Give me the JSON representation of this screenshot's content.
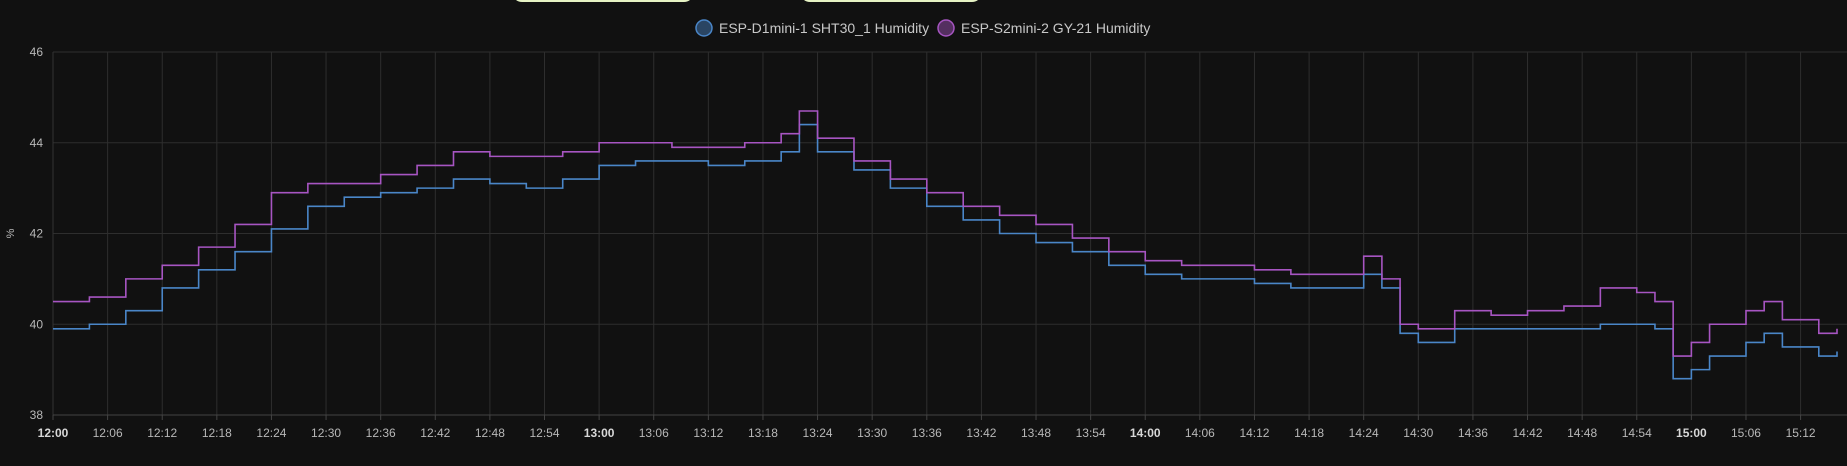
{
  "chart_data": {
    "type": "line",
    "step": true,
    "xlabel": "",
    "ylabel": "%",
    "ylim": [
      38,
      46
    ],
    "yticks": [
      "38",
      "40",
      "42",
      "44",
      "46"
    ],
    "xlim": [
      "12:00",
      "15:16"
    ],
    "xticks": [
      {
        "t": "12:00",
        "bold": true
      },
      {
        "t": "12:06"
      },
      {
        "t": "12:12"
      },
      {
        "t": "12:18"
      },
      {
        "t": "12:24"
      },
      {
        "t": "12:30"
      },
      {
        "t": "12:36"
      },
      {
        "t": "12:42"
      },
      {
        "t": "12:48"
      },
      {
        "t": "12:54"
      },
      {
        "t": "13:00",
        "bold": true
      },
      {
        "t": "13:06"
      },
      {
        "t": "13:12"
      },
      {
        "t": "13:18"
      },
      {
        "t": "13:24"
      },
      {
        "t": "13:30"
      },
      {
        "t": "13:36"
      },
      {
        "t": "13:42"
      },
      {
        "t": "13:48"
      },
      {
        "t": "13:54"
      },
      {
        "t": "14:00",
        "bold": true
      },
      {
        "t": "14:06"
      },
      {
        "t": "14:12"
      },
      {
        "t": "14:18"
      },
      {
        "t": "14:24"
      },
      {
        "t": "14:30"
      },
      {
        "t": "14:36"
      },
      {
        "t": "14:42"
      },
      {
        "t": "14:48"
      },
      {
        "t": "14:54"
      },
      {
        "t": "15:00",
        "bold": true
      },
      {
        "t": "15:06"
      },
      {
        "t": "15:12"
      }
    ],
    "grid": true,
    "legend_position": "top-center",
    "series": [
      {
        "name": "ESP-D1mini-1 SHT30_1 Humidity",
        "color": "#4a86c8",
        "points": [
          [
            "12:00",
            39.9
          ],
          [
            "12:04",
            40.0
          ],
          [
            "12:08",
            40.3
          ],
          [
            "12:12",
            40.8
          ],
          [
            "12:16",
            41.2
          ],
          [
            "12:20",
            41.6
          ],
          [
            "12:24",
            42.1
          ],
          [
            "12:28",
            42.6
          ],
          [
            "12:32",
            42.8
          ],
          [
            "12:36",
            42.9
          ],
          [
            "12:40",
            43.0
          ],
          [
            "12:44",
            43.2
          ],
          [
            "12:48",
            43.1
          ],
          [
            "12:52",
            43.0
          ],
          [
            "12:56",
            43.2
          ],
          [
            "13:00",
            43.5
          ],
          [
            "13:04",
            43.6
          ],
          [
            "13:08",
            43.6
          ],
          [
            "13:12",
            43.5
          ],
          [
            "13:16",
            43.6
          ],
          [
            "13:20",
            43.8
          ],
          [
            "13:22",
            44.4
          ],
          [
            "13:24",
            43.8
          ],
          [
            "13:28",
            43.4
          ],
          [
            "13:32",
            43.0
          ],
          [
            "13:36",
            42.6
          ],
          [
            "13:40",
            42.3
          ],
          [
            "13:44",
            42.0
          ],
          [
            "13:48",
            41.8
          ],
          [
            "13:52",
            41.6
          ],
          [
            "13:56",
            41.3
          ],
          [
            "14:00",
            41.1
          ],
          [
            "14:04",
            41.0
          ],
          [
            "14:08",
            41.0
          ],
          [
            "14:12",
            40.9
          ],
          [
            "14:16",
            40.8
          ],
          [
            "14:20",
            40.8
          ],
          [
            "14:24",
            41.1
          ],
          [
            "14:26",
            40.8
          ],
          [
            "14:28",
            39.8
          ],
          [
            "14:30",
            39.6
          ],
          [
            "14:34",
            39.9
          ],
          [
            "14:38",
            39.9
          ],
          [
            "14:42",
            39.9
          ],
          [
            "14:46",
            39.9
          ],
          [
            "14:50",
            40.0
          ],
          [
            "14:54",
            40.0
          ],
          [
            "14:56",
            39.9
          ],
          [
            "14:58",
            38.8
          ],
          [
            "15:00",
            39.0
          ],
          [
            "15:02",
            39.3
          ],
          [
            "15:06",
            39.6
          ],
          [
            "15:08",
            39.8
          ],
          [
            "15:10",
            39.5
          ],
          [
            "15:14",
            39.3
          ],
          [
            "15:16",
            39.4
          ]
        ]
      },
      {
        "name": "ESP-S2mini-2 GY-21 Humidity",
        "color": "#a755c2",
        "points": [
          [
            "12:00",
            40.5
          ],
          [
            "12:04",
            40.6
          ],
          [
            "12:08",
            41.0
          ],
          [
            "12:12",
            41.3
          ],
          [
            "12:16",
            41.7
          ],
          [
            "12:20",
            42.2
          ],
          [
            "12:24",
            42.9
          ],
          [
            "12:28",
            43.1
          ],
          [
            "12:32",
            43.1
          ],
          [
            "12:36",
            43.3
          ],
          [
            "12:40",
            43.5
          ],
          [
            "12:44",
            43.8
          ],
          [
            "12:48",
            43.7
          ],
          [
            "12:52",
            43.7
          ],
          [
            "12:56",
            43.8
          ],
          [
            "13:00",
            44.0
          ],
          [
            "13:04",
            44.0
          ],
          [
            "13:08",
            43.9
          ],
          [
            "13:12",
            43.9
          ],
          [
            "13:16",
            44.0
          ],
          [
            "13:20",
            44.2
          ],
          [
            "13:22",
            44.7
          ],
          [
            "13:24",
            44.1
          ],
          [
            "13:28",
            43.6
          ],
          [
            "13:32",
            43.2
          ],
          [
            "13:36",
            42.9
          ],
          [
            "13:40",
            42.6
          ],
          [
            "13:44",
            42.4
          ],
          [
            "13:48",
            42.2
          ],
          [
            "13:52",
            41.9
          ],
          [
            "13:56",
            41.6
          ],
          [
            "14:00",
            41.4
          ],
          [
            "14:04",
            41.3
          ],
          [
            "14:08",
            41.3
          ],
          [
            "14:12",
            41.2
          ],
          [
            "14:16",
            41.1
          ],
          [
            "14:20",
            41.1
          ],
          [
            "14:24",
            41.5
          ],
          [
            "14:26",
            41.0
          ],
          [
            "14:28",
            40.0
          ],
          [
            "14:30",
            39.9
          ],
          [
            "14:34",
            40.3
          ],
          [
            "14:38",
            40.2
          ],
          [
            "14:42",
            40.3
          ],
          [
            "14:46",
            40.4
          ],
          [
            "14:50",
            40.8
          ],
          [
            "14:54",
            40.7
          ],
          [
            "14:56",
            40.5
          ],
          [
            "14:58",
            39.3
          ],
          [
            "15:00",
            39.6
          ],
          [
            "15:02",
            40.0
          ],
          [
            "15:06",
            40.3
          ],
          [
            "15:08",
            40.5
          ],
          [
            "15:10",
            40.1
          ],
          [
            "15:14",
            39.8
          ],
          [
            "15:16",
            39.9
          ]
        ]
      }
    ]
  }
}
